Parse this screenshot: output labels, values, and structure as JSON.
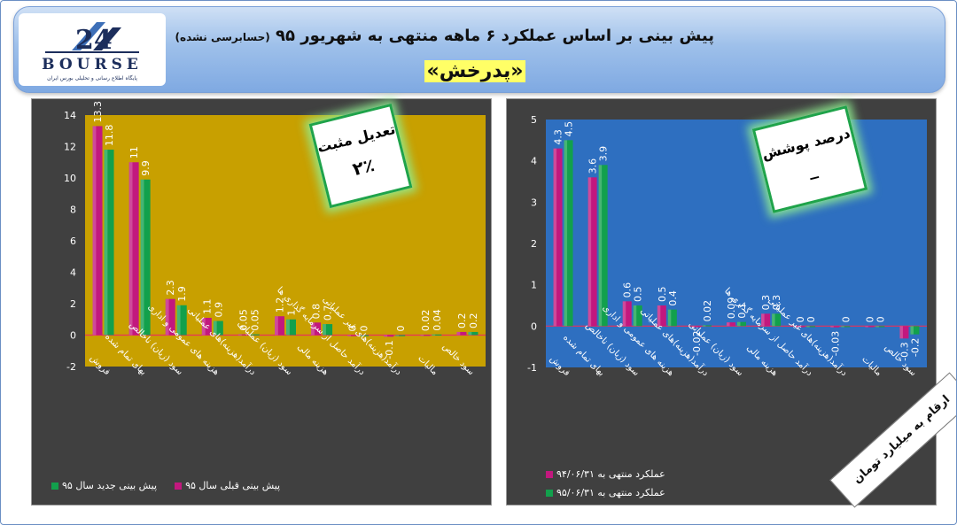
{
  "header": {
    "title": "پیش بینی بر اساس عملکرد ۶ ماهه منتهی به شهریور ۹۵",
    "title_note": "(حسابرسی نشده)",
    "company": "«پدرخش»",
    "logo_text": "BOURSE",
    "logo_subtext": "پایگاه اطلاع رسانی و تحلیلی بورس ایران"
  },
  "left_callout": {
    "label": "تعدیل مثبت",
    "value": "۲٪"
  },
  "right_callout": {
    "label": "درصد پوشش",
    "value": "_"
  },
  "units_badge": "ارقام به میلیارد تومان",
  "colors": {
    "magenta": "#c2187e",
    "green": "#12a04c",
    "left_plot": "#c8a000",
    "right_plot": "#2e6fc0",
    "panel": "#404040"
  },
  "chart_data": [
    {
      "type": "bar",
      "categories": [
        "فروش",
        "بهای تمام شده",
        "سود (زیان) ناخالص",
        "هزینه های عمومی و اداری",
        "درآمد(هزینه)های عملیاتی",
        "سود (زیان) عملیاتی",
        "هزینه مالی",
        "درآمد حاصل از سرمایه گذاری ها",
        "درآمد(هزینه)های غیر عملیاتی",
        "مالیات",
        "سود خالص"
      ],
      "series": [
        {
          "name": "پیش بینی قبلی سال ۹۵",
          "values": [
            13.3,
            11,
            2.3,
            1.1,
            0.05,
            1.2,
            0.8,
            0,
            -0.1,
            0.02,
            0.2
          ],
          "labels": [
            "13.3",
            "11",
            "2.3",
            "1.1",
            "0.05",
            "1.2",
            "0.8",
            "0",
            "-0.1",
            "0.02",
            "0.2"
          ]
        },
        {
          "name": "پیش بینی جدید سال ۹۵",
          "values": [
            11.8,
            9.9,
            1.9,
            0.9,
            0.05,
            1,
            0.7,
            0,
            0,
            0.04,
            0.2
          ],
          "labels": [
            "11.8",
            "9.9",
            "1.9",
            "0.9",
            "0.05",
            "1",
            "0.7",
            "0",
            "0",
            "0.04",
            "0.2"
          ]
        }
      ],
      "ylim": [
        -2,
        14
      ],
      "yticks": [
        -2,
        0,
        2,
        4,
        6,
        8,
        10,
        12,
        14
      ]
    },
    {
      "type": "bar",
      "categories": [
        "فروش",
        "بهای تمام شده",
        "سود (زیان) ناخالص",
        "هزینه های عمومی و اداری",
        "درآمد(هزینه)های عملیاتی",
        "سود (زیان) عملیاتی",
        "هزینه مالی",
        "درآمد حاصل از سرمایه گذاری ها",
        "درآمد(هزینه)های غیر عملیاتی",
        "مالیات",
        "سود خالص"
      ],
      "series": [
        {
          "name": "عملکرد منتهی به ۹۴/۰۶/۳۱",
          "values": [
            4.3,
            3.6,
            0.6,
            0.5,
            -0.02,
            0.09,
            0.3,
            0,
            -0.03,
            0,
            -0.3
          ],
          "labels": [
            "4.3",
            "3.6",
            "0.6",
            "0.5",
            "-0.02",
            "0.09",
            "0.3",
            "0",
            "-0.03",
            "0",
            "-0.3"
          ]
        },
        {
          "name": "عملکرد منتهی به ۹۵/۰۶/۳۱",
          "values": [
            4.5,
            3.9,
            0.5,
            0.4,
            0.02,
            0.1,
            0.3,
            0,
            0,
            0,
            -0.2
          ],
          "labels": [
            "4.5",
            "3.9",
            "0.5",
            "0.4",
            "0.02",
            "0.1",
            "0.3",
            "0",
            "0",
            "0",
            "-0.2"
          ]
        }
      ],
      "ylim": [
        -1,
        5
      ],
      "yticks": [
        -1,
        0,
        1,
        2,
        3,
        4,
        5
      ]
    }
  ]
}
